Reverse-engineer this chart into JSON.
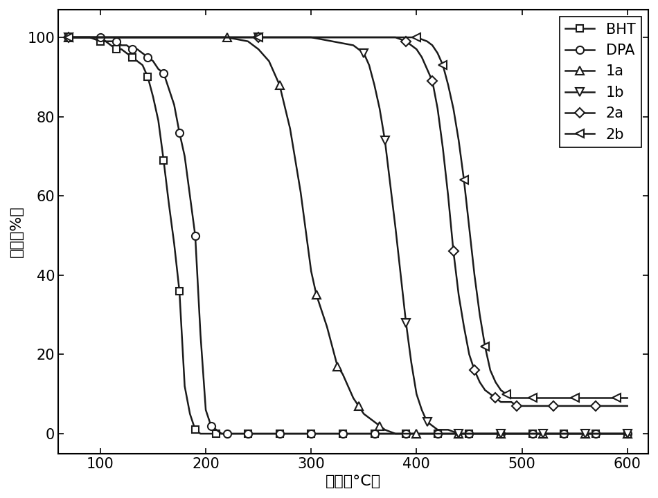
{
  "title": "",
  "xlabel": "温度（°C）",
  "ylabel": "重量（%）",
  "xlim": [
    60,
    620
  ],
  "ylim": [
    -5,
    107
  ],
  "xticks": [
    100,
    200,
    300,
    400,
    500,
    600
  ],
  "yticks": [
    0,
    20,
    40,
    60,
    80,
    100
  ],
  "background_color": "#ffffff",
  "line_color": "#1a1a1a",
  "series": {
    "BHT": {
      "x": [
        70,
        80,
        90,
        100,
        105,
        110,
        115,
        120,
        125,
        130,
        135,
        140,
        145,
        150,
        155,
        160,
        165,
        170,
        175,
        180,
        185,
        190,
        195,
        200,
        210,
        220,
        230,
        240,
        250,
        260,
        270,
        280,
        290,
        300,
        310,
        320,
        330,
        340,
        350,
        360,
        370,
        380,
        390,
        400,
        410,
        420,
        430,
        440,
        450,
        460,
        470,
        480,
        490,
        500,
        510,
        520,
        530,
        540,
        550,
        560,
        570,
        580,
        590,
        600
      ],
      "y": [
        100,
        100,
        100,
        99,
        99,
        98,
        97,
        97,
        96,
        95,
        94,
        93,
        90,
        85,
        79,
        69,
        58,
        48,
        36,
        12,
        5,
        1,
        0,
        0,
        0,
        0,
        0,
        0,
        0,
        0,
        0,
        0,
        0,
        0,
        0,
        0,
        0,
        0,
        0,
        0,
        0,
        0,
        0,
        0,
        0,
        0,
        0,
        0,
        0,
        0,
        0,
        0,
        0,
        0,
        0,
        0,
        0,
        0,
        0,
        0,
        0,
        0,
        0,
        0
      ],
      "marker": "s",
      "marker_size": 7,
      "label": "BHT"
    },
    "DPA": {
      "x": [
        70,
        80,
        90,
        100,
        105,
        110,
        115,
        120,
        125,
        130,
        135,
        140,
        145,
        150,
        155,
        160,
        165,
        170,
        175,
        180,
        185,
        190,
        195,
        200,
        205,
        210,
        215,
        220,
        225,
        230,
        240,
        250,
        260,
        270,
        280,
        290,
        300,
        310,
        320,
        330,
        340,
        350,
        360,
        370,
        380,
        390,
        400,
        410,
        420,
        430,
        440,
        450,
        460,
        470,
        480,
        490,
        500,
        510,
        520,
        530,
        540,
        550,
        560,
        570,
        580,
        590,
        600
      ],
      "y": [
        100,
        100,
        100,
        100,
        99,
        99,
        99,
        98,
        98,
        97,
        97,
        96,
        95,
        94,
        92,
        91,
        87,
        83,
        76,
        70,
        60,
        50,
        25,
        6,
        2,
        1,
        0,
        0,
        0,
        0,
        0,
        0,
        0,
        0,
        0,
        0,
        0,
        0,
        0,
        0,
        0,
        0,
        0,
        0,
        0,
        0,
        0,
        0,
        0,
        0,
        0,
        0,
        0,
        0,
        0,
        0,
        0,
        0,
        0,
        0,
        0,
        0,
        0,
        0,
        0,
        0,
        0
      ],
      "marker": "o",
      "marker_size": 8,
      "label": "DPA"
    },
    "1a": {
      "x": [
        70,
        100,
        150,
        200,
        220,
        240,
        250,
        260,
        270,
        280,
        290,
        300,
        305,
        310,
        315,
        320,
        325,
        330,
        335,
        340,
        345,
        350,
        355,
        360,
        365,
        370,
        380,
        390,
        400,
        410,
        420,
        430,
        440,
        450,
        460,
        470,
        480,
        490,
        500,
        510,
        520,
        530,
        540,
        550,
        560,
        570,
        580,
        590,
        600
      ],
      "y": [
        100,
        100,
        100,
        100,
        100,
        99,
        97,
        94,
        88,
        77,
        61,
        41,
        35,
        31,
        27,
        22,
        17,
        15,
        12,
        9,
        7,
        5,
        4,
        3,
        2,
        1,
        0,
        0,
        0,
        0,
        0,
        0,
        0,
        0,
        0,
        0,
        0,
        0,
        0,
        0,
        0,
        0,
        0,
        0,
        0,
        0,
        0,
        0,
        0
      ],
      "marker": "^",
      "marker_size": 8,
      "label": "1a"
    },
    "1b": {
      "x": [
        70,
        100,
        150,
        200,
        250,
        300,
        320,
        340,
        350,
        355,
        360,
        365,
        370,
        375,
        380,
        385,
        390,
        395,
        400,
        405,
        410,
        415,
        420,
        430,
        440,
        450,
        460,
        470,
        480,
        490,
        500,
        510,
        520,
        530,
        540,
        550,
        560,
        570,
        580,
        590,
        600
      ],
      "y": [
        100,
        100,
        100,
        100,
        100,
        100,
        99,
        98,
        96,
        93,
        88,
        82,
        74,
        63,
        52,
        40,
        28,
        18,
        10,
        6,
        3,
        2,
        1,
        1,
        0,
        0,
        0,
        0,
        0,
        0,
        0,
        0,
        0,
        0,
        0,
        0,
        0,
        0,
        0,
        0,
        0
      ],
      "marker": "v",
      "marker_size": 8,
      "label": "1b"
    },
    "2a": {
      "x": [
        70,
        100,
        150,
        200,
        250,
        300,
        350,
        380,
        390,
        400,
        405,
        410,
        415,
        420,
        425,
        430,
        435,
        440,
        445,
        450,
        455,
        460,
        465,
        470,
        475,
        480,
        485,
        490,
        495,
        500,
        510,
        520,
        530,
        540,
        550,
        560,
        570,
        580,
        590,
        600
      ],
      "y": [
        100,
        100,
        100,
        100,
        100,
        100,
        100,
        100,
        99,
        97,
        95,
        92,
        89,
        82,
        72,
        60,
        46,
        35,
        27,
        20,
        16,
        13,
        11,
        10,
        9,
        8,
        8,
        8,
        7,
        7,
        7,
        7,
        7,
        7,
        7,
        7,
        7,
        7,
        7,
        7
      ],
      "marker": "D",
      "marker_size": 7,
      "label": "2a"
    },
    "2b": {
      "x": [
        70,
        100,
        150,
        200,
        250,
        300,
        350,
        390,
        400,
        410,
        415,
        420,
        425,
        430,
        435,
        440,
        445,
        450,
        455,
        460,
        465,
        470,
        475,
        480,
        485,
        490,
        495,
        500,
        510,
        520,
        530,
        540,
        550,
        560,
        570,
        580,
        590,
        600
      ],
      "y": [
        100,
        100,
        100,
        100,
        100,
        100,
        100,
        100,
        100,
        99,
        98,
        96,
        93,
        88,
        82,
        74,
        64,
        52,
        40,
        30,
        22,
        16,
        13,
        11,
        10,
        9,
        9,
        9,
        9,
        9,
        9,
        9,
        9,
        9,
        9,
        9,
        9,
        9
      ],
      "marker": "<",
      "marker_size": 8,
      "label": "2b"
    }
  },
  "legend_loc": "upper right",
  "legend_fontsize": 15,
  "axis_fontsize": 16,
  "tick_fontsize": 15
}
